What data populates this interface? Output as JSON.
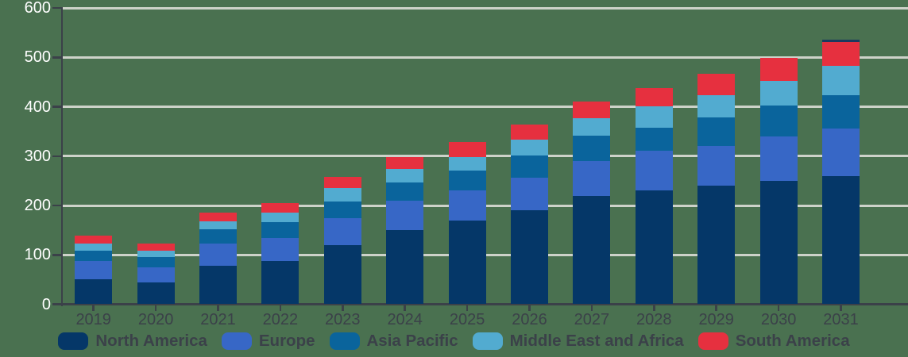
{
  "chart_data": {
    "type": "bar",
    "stacked": true,
    "title": "",
    "xlabel": "",
    "ylabel": "",
    "categories": [
      "2019",
      "2020",
      "2021",
      "2022",
      "2023",
      "2024",
      "2025",
      "2026",
      "2027",
      "2028",
      "2029",
      "2030",
      "2031"
    ],
    "series": [
      {
        "name": "North America",
        "color": "#053768",
        "values": [
          50,
          44,
          78,
          88,
          120,
          150,
          170,
          190,
          220,
          230,
          240,
          250,
          260
        ]
      },
      {
        "name": "Europe",
        "color": "#3767c6",
        "values": [
          37,
          31,
          45,
          46,
          54,
          59,
          61,
          67,
          70,
          81,
          81,
          90,
          95
        ]
      },
      {
        "name": "Asia Pacific",
        "color": "#0a649c",
        "values": [
          21,
          20,
          29,
          32,
          34,
          38,
          39,
          45,
          51,
          47,
          58,
          62,
          68
        ]
      },
      {
        "name": "Middle East and Africa",
        "color": "#52abd0",
        "values": [
          15,
          13,
          16,
          19,
          28,
          27,
          28,
          31,
          35,
          43,
          45,
          50,
          59
        ]
      },
      {
        "name": "South America",
        "color": "#e6303f",
        "values": [
          16,
          15,
          18,
          20,
          22,
          24,
          30,
          31,
          35,
          36,
          42,
          47,
          53
        ]
      }
    ],
    "totals": [
      139,
      123,
      186,
      205,
      258,
      298,
      328,
      364,
      411,
      437,
      466,
      499,
      535
    ],
    "ylim": [
      0,
      600
    ],
    "yticks": [
      0,
      100,
      200,
      300,
      400,
      500,
      600
    ],
    "y_tick_labels": [
      "0",
      "100",
      "200",
      "300",
      "400",
      "500",
      "600"
    ],
    "grid": "horizontal",
    "legend_position": "bottom"
  },
  "colors": {
    "background": "#4a7150",
    "gridline": "#cdd2c9",
    "axis": "#3b4149",
    "y_tick_label_text": "#ffffff",
    "x_tick_label_text": "#3b4149",
    "legend_text": "#3b4149",
    "last_bar_top_cap": "#1b3a5f"
  }
}
